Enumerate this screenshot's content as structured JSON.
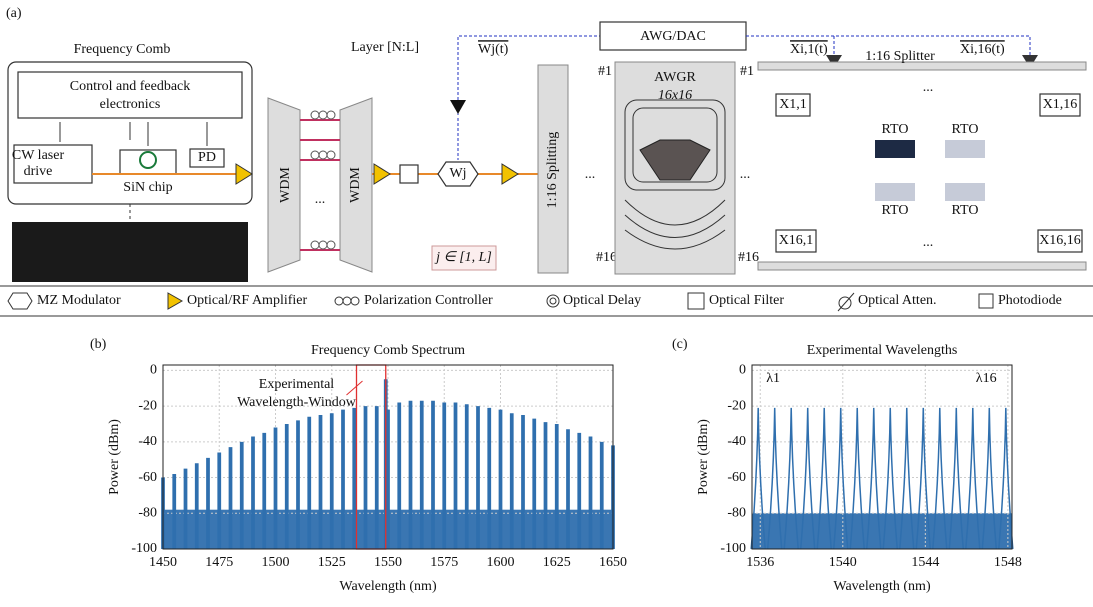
{
  "panels": {
    "a": "(a)",
    "b": "(b)",
    "c": "(c)"
  },
  "diagram": {
    "comb_title": "Frequency Comb",
    "control": [
      "Control and feedback",
      "electronics"
    ],
    "laser": [
      "CW laser",
      "drive"
    ],
    "chip": "SiN chip",
    "pd": "PD",
    "wdm": "WDM",
    "layer": "Layer [N:L]",
    "weight_signal": "Wj(t)",
    "modulator": "Wj",
    "range": "j ∈ [1, L]",
    "awg": "AWG/DAC",
    "input_first": "Xi,1(t)",
    "input_last": "Xi,16(t)",
    "splitting": "1:16 Splitting",
    "port_first": "#1",
    "port_last": "#16",
    "awgr": "AWGR",
    "awgr_size": "16x16",
    "splitter": "1:16 Splitter",
    "outputs": [
      "X1,1",
      "X1,16",
      "X16,1",
      "X16,16"
    ],
    "rto": "RTO",
    "dots": "..."
  },
  "legend": [
    "MZ Modulator",
    "Optical/RF Amplifier",
    "Polarization Controller",
    "Optical Delay",
    "Optical Filter",
    "Optical Atten.",
    "Photodiode"
  ],
  "chart_data": [
    {
      "type": "stem",
      "title": "Frequency Comb Spectrum",
      "xlabel": "Wavelength (nm)",
      "ylabel": "Power (dBm)",
      "x": [
        1450,
        1455,
        1460,
        1465,
        1470,
        1475,
        1480,
        1485,
        1490,
        1495,
        1500,
        1505,
        1510,
        1515,
        1520,
        1525,
        1530,
        1535,
        1540,
        1545,
        1549,
        1550,
        1555,
        1560,
        1565,
        1570,
        1575,
        1580,
        1585,
        1590,
        1595,
        1600,
        1605,
        1610,
        1615,
        1620,
        1625,
        1630,
        1635,
        1640,
        1645,
        1650
      ],
      "values": [
        -60,
        -58,
        -55,
        -52,
        -49,
        -46,
        -43,
        -40,
        -37,
        -35,
        -32,
        -30,
        -28,
        -26,
        -25,
        -24,
        -22,
        -21,
        -20,
        -20,
        -5,
        -22,
        -18,
        -17,
        -17,
        -17,
        -18,
        -18,
        -19,
        -20,
        -21,
        -22,
        -24,
        -25,
        -27,
        -29,
        -30,
        -33,
        -35,
        -37,
        -40,
        -42
      ],
      "noise_floor": -78,
      "color": "#2f6fae",
      "window": [
        1536,
        1549
      ],
      "window_color": "#e03030",
      "annotation": [
        "Experimental",
        "Wavelength-Window"
      ],
      "xlim": [
        1450,
        1650
      ],
      "ylim": [
        -100,
        3
      ],
      "xticks": [
        1450,
        1475,
        1500,
        1525,
        1550,
        1575,
        1600,
        1625,
        1650
      ],
      "yticks": [
        0,
        -20,
        -40,
        -60,
        -80,
        -100
      ],
      "grid": true
    },
    {
      "type": "stem",
      "title": "Experimental Wavelengths",
      "xlabel": "Wavelength (nm)",
      "ylabel": "Power (dBm)",
      "x": [
        1535.9,
        1536.7,
        1537.5,
        1538.3,
        1539.1,
        1539.9,
        1540.7,
        1541.5,
        1542.3,
        1543.1,
        1543.9,
        1544.7,
        1545.5,
        1546.3,
        1547.1,
        1547.9
      ],
      "values": [
        -21,
        -21,
        -21,
        -21,
        -21,
        -21,
        -21,
        -21,
        -21,
        -21,
        -21,
        -21,
        -21,
        -21,
        -21,
        -21
      ],
      "noise_floor": -80,
      "color": "#2f6fae",
      "annotation": [
        "λ1",
        "λ16"
      ],
      "xlim": [
        1535.6,
        1548.2
      ],
      "ylim": [
        -100,
        3
      ],
      "xticks": [
        1536,
        1540,
        1544,
        1548
      ],
      "yticks": [
        0,
        -20,
        -40,
        -60,
        -80,
        -100
      ],
      "grid": true
    }
  ]
}
